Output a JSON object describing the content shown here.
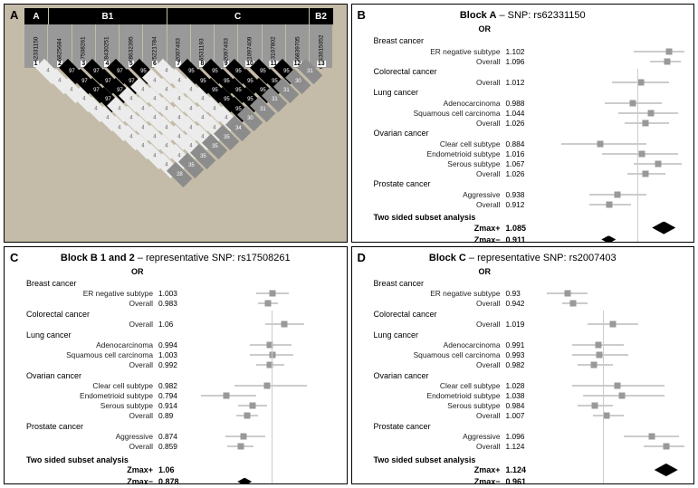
{
  "panelA": {
    "label": "A",
    "blocks": [
      {
        "name": "A",
        "span": 1
      },
      {
        "name": "B1",
        "span": 5
      },
      {
        "name": "C",
        "span": 6
      },
      {
        "name": "B2",
        "span": 1
      }
    ],
    "snps": [
      "rs62331150",
      "rs6825684",
      "rs17508261",
      "rs78430251",
      "rs78632395",
      "rs75221784",
      "rs2007403",
      "rs6531193",
      "rs2097403",
      "rs11097409",
      "rs13107802",
      "rs66839705",
      "rs143015052"
    ],
    "ld": [
      [
        4
      ],
      [
        4,
        97
      ],
      [
        4,
        97,
        97
      ],
      [
        4,
        97,
        97,
        97
      ],
      [
        4,
        97,
        97,
        97,
        95
      ],
      [
        4,
        4,
        4,
        4,
        4,
        4
      ],
      [
        4,
        4,
        4,
        4,
        4,
        4,
        95
      ],
      [
        4,
        4,
        4,
        4,
        4,
        4,
        95,
        95
      ],
      [
        4,
        4,
        4,
        4,
        4,
        4,
        95,
        95,
        95
      ],
      [
        4,
        4,
        4,
        4,
        4,
        4,
        95,
        95,
        95,
        95
      ],
      [
        4,
        4,
        4,
        4,
        4,
        4,
        95,
        95,
        95,
        95,
        95
      ],
      [
        28,
        35,
        35,
        35,
        35,
        34,
        30,
        31,
        31,
        31,
        30,
        31
      ]
    ],
    "palette": {
      "high": "#000000",
      "mid": "#8c8c8c",
      "low": "#ececec"
    },
    "background": "#c4bca8"
  },
  "panels": [
    {
      "id": "B",
      "label": "B",
      "title_bold": "Block A",
      "title_rest": " – SNP: rs62331150",
      "xmin": 0.7,
      "xmax": 1.15,
      "ticks": [
        0.7,
        0.8,
        0.9,
        1.0,
        1.1
      ],
      "groups": [
        {
          "name": "Breast cancer",
          "rows": [
            {
              "label": "ER negative subtype",
              "or": 1.102,
              "lo": 0.99,
              "hi": 1.15
            },
            {
              "label": "Overall",
              "or": 1.096,
              "lo": 1.04,
              "hi": 1.14
            }
          ]
        },
        {
          "name": "Colorectal cancer",
          "rows": [
            {
              "label": "Overall",
              "or": 1.012,
              "lo": 0.92,
              "hi": 1.1
            }
          ]
        },
        {
          "name": "Lung cancer",
          "rows": [
            {
              "label": "Adenocarcinoma",
              "or": 0.988,
              "lo": 0.9,
              "hi": 1.08
            },
            {
              "label": "Squamous cell carcinoma",
              "or": 1.044,
              "lo": 0.94,
              "hi": 1.13
            },
            {
              "label": "Overall",
              "or": 1.026,
              "lo": 0.96,
              "hi": 1.1
            }
          ]
        },
        {
          "name": "Ovarian cancer",
          "rows": [
            {
              "label": "Clear cell subtype",
              "or": 0.884,
              "lo": 0.76,
              "hi": 1.03
            },
            {
              "label": "Endometrioid subtype",
              "or": 1.016,
              "lo": 0.89,
              "hi": 1.13
            },
            {
              "label": "Serous subtype",
              "or": 1.067,
              "lo": 0.99,
              "hi": 1.14
            },
            {
              "label": "Overall",
              "or": 1.026,
              "lo": 0.97,
              "hi": 1.09
            }
          ]
        },
        {
          "name": "Prostate cancer",
          "rows": [
            {
              "label": "Aggressive",
              "or": 0.938,
              "lo": 0.85,
              "hi": 1.03
            },
            {
              "label": "Overall",
              "or": 0.912,
              "lo": 0.85,
              "hi": 0.98
            }
          ]
        }
      ],
      "footer": [
        {
          "label": "Zmax+",
          "val": 1.085,
          "diamond": true,
          "big": true
        },
        {
          "label": "Zmax−",
          "val": 0.911,
          "diamond": true,
          "big": false
        }
      ]
    },
    {
      "id": "C",
      "label": "C",
      "title_bold": "Block B 1 and 2",
      "title_rest": " – representative SNP: rs17508261",
      "xmin": 0.65,
      "xmax": 1.3,
      "ticks": [
        0.7,
        0.8,
        0.9,
        1.0,
        1.1,
        1.2,
        1.3
      ],
      "groups": [
        {
          "name": "Breast cancer",
          "rows": [
            {
              "label": "ER negative subtype",
              "or": 1.003,
              "lo": 0.93,
              "hi": 1.08
            },
            {
              "label": "Overall",
              "or": 0.983,
              "lo": 0.94,
              "hi": 1.03
            }
          ]
        },
        {
          "name": "Colorectal cancer",
          "rows": [
            {
              "label": "Overall",
              "or": 1.06,
              "lo": 0.97,
              "hi": 1.15
            }
          ]
        },
        {
          "name": "Lung cancer",
          "rows": [
            {
              "label": "Adenocarcinoma",
              "or": 0.994,
              "lo": 0.9,
              "hi": 1.09
            },
            {
              "label": "Squamous cell carcinoma",
              "or": 1.003,
              "lo": 0.9,
              "hi": 1.1
            },
            {
              "label": "Overall",
              "or": 0.992,
              "lo": 0.93,
              "hi": 1.06
            }
          ]
        },
        {
          "name": "Ovarian cancer",
          "rows": [
            {
              "label": "Clear cell subtype",
              "or": 0.982,
              "lo": 0.83,
              "hi": 1.16
            },
            {
              "label": "Endometrioid subtype",
              "or": 0.794,
              "lo": 0.68,
              "hi": 0.93
            },
            {
              "label": "Serous subtype",
              "or": 0.914,
              "lo": 0.85,
              "hi": 0.98
            },
            {
              "label": "Overall",
              "or": 0.89,
              "lo": 0.84,
              "hi": 0.94
            }
          ]
        },
        {
          "name": "Prostate cancer",
          "rows": [
            {
              "label": "Aggressive",
              "or": 0.874,
              "lo": 0.79,
              "hi": 0.97
            },
            {
              "label": "Overall",
              "or": 0.859,
              "lo": 0.8,
              "hi": 0.92
            }
          ]
        }
      ],
      "footer": [
        {
          "label": "Zmax+",
          "val": 1.06,
          "diamond": false
        },
        {
          "label": "Zmax−",
          "val": 0.878,
          "diamond": true,
          "big": false
        }
      ]
    },
    {
      "id": "D",
      "label": "D",
      "title_bold": "Block C",
      "title_rest": " – representative SNP: rs2007403",
      "xmin": 0.88,
      "xmax": 1.16,
      "ticks": [
        0.9,
        0.95,
        1.0,
        1.05,
        1.1,
        1.15
      ],
      "groups": [
        {
          "name": "Breast cancer",
          "rows": [
            {
              "label": "ER negative subtype",
              "or": 0.93,
              "lo": 0.89,
              "hi": 0.97
            },
            {
              "label": "Overall",
              "or": 0.942,
              "lo": 0.92,
              "hi": 0.97
            }
          ]
        },
        {
          "name": "Colorectal cancer",
          "rows": [
            {
              "label": "Overall",
              "or": 1.019,
              "lo": 0.97,
              "hi": 1.07
            }
          ]
        },
        {
          "name": "Lung cancer",
          "rows": [
            {
              "label": "Adenocarcinoma",
              "or": 0.991,
              "lo": 0.94,
              "hi": 1.04
            },
            {
              "label": "Squamous cell carcinoma",
              "or": 0.993,
              "lo": 0.94,
              "hi": 1.05
            },
            {
              "label": "Overall",
              "or": 0.982,
              "lo": 0.95,
              "hi": 1.02
            }
          ]
        },
        {
          "name": "Ovarian cancer",
          "rows": [
            {
              "label": "Clear cell subtype",
              "or": 1.028,
              "lo": 0.94,
              "hi": 1.12
            },
            {
              "label": "Endometrioid subtype",
              "or": 1.038,
              "lo": 0.96,
              "hi": 1.12
            },
            {
              "label": "Serous subtype",
              "or": 0.984,
              "lo": 0.95,
              "hi": 1.02
            },
            {
              "label": "Overall",
              "or": 1.007,
              "lo": 0.98,
              "hi": 1.04
            }
          ]
        },
        {
          "name": "Prostate cancer",
          "rows": [
            {
              "label": "Aggressive",
              "or": 1.096,
              "lo": 1.04,
              "hi": 1.15
            },
            {
              "label": "Overall",
              "or": 1.124,
              "lo": 1.08,
              "hi": 1.16
            }
          ]
        }
      ],
      "footer": [
        {
          "label": "Zmax+",
          "val": 1.124,
          "diamond": true,
          "big": true
        },
        {
          "label": "Zmax−",
          "val": 0.961,
          "diamond": false
        }
      ]
    }
  ],
  "or_label": "OR",
  "analysis_label": "Two sided subset analysis",
  "colors": {
    "marker": "#999999",
    "ci": "#999999",
    "refline": "#bbbbbb",
    "diamond": "#000000"
  }
}
